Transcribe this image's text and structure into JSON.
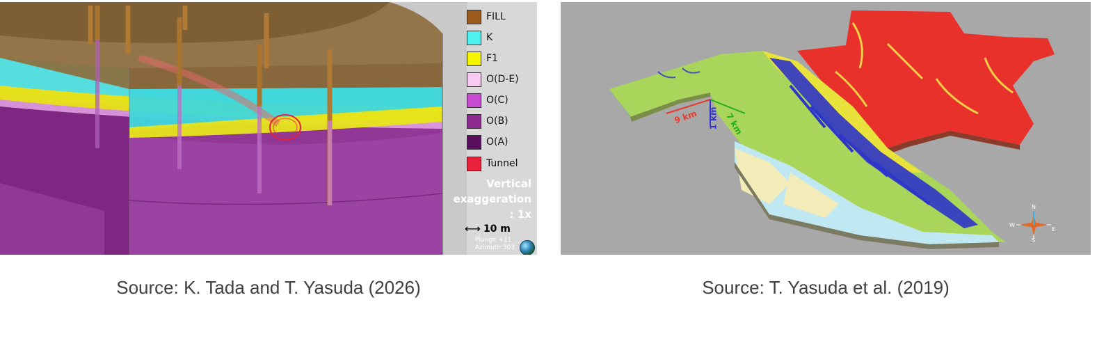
{
  "left_figure": {
    "legend": [
      {
        "label": "FILL",
        "color": "#9a5a1e"
      },
      {
        "label": "K",
        "color": "#4ff0f0"
      },
      {
        "label": "F1",
        "color": "#f5f500"
      },
      {
        "label": "O(D-E)",
        "color": "#f7c9f3"
      },
      {
        "label": "O(C)",
        "color": "#c64bd0"
      },
      {
        "label": "O(B)",
        "color": "#8c2a8f"
      },
      {
        "label": "O(A)",
        "color": "#5a0f5e"
      },
      {
        "label": "Tunnel",
        "color": "#e8203a"
      }
    ],
    "vertical_exaggeration": {
      "line1": "Vertical",
      "line2": "exaggeration",
      "line3": ": 1x"
    },
    "scale_label": "10 m",
    "plunge_text": "Plunge +11",
    "azimuth_text": "Azimuth 303",
    "arrow_icon": "double-arrow-icon",
    "globe_icon": "globe-icon"
  },
  "right_figure": {
    "scale_labels": {
      "red": "9 km",
      "blue": "1 km",
      "green": "7 km"
    },
    "compass_labels": {
      "north": "N",
      "south": "S",
      "east": "E",
      "west": "W"
    },
    "compass_icon": "compass-icon",
    "colors": {
      "red": "#e63a2e",
      "blue": "#2e35c8",
      "green": "#1fb01f"
    }
  },
  "captions": {
    "left": "Source: K. Tada and T. Yasuda (2026)",
    "right": "Source: T. Yasuda et al. (2019)"
  }
}
